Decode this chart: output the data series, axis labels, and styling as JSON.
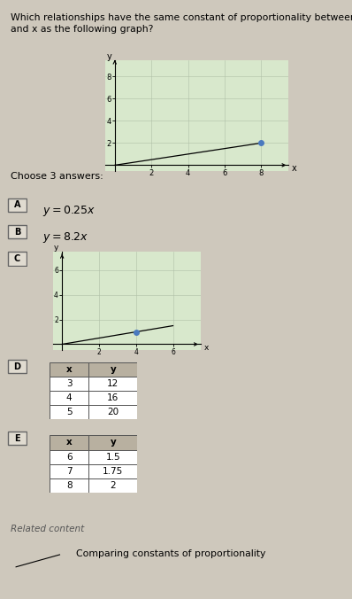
{
  "title_line1": "Which relationships have the same constant of proportionality between y",
  "title_line2": "and x as the following graph?",
  "background_color": "#cec8bc",
  "choose_text": "Choose 3 answers:",
  "separator_color": "#5a5a5a",
  "main_graph": {
    "xlim": [
      -0.5,
      9.5
    ],
    "ylim": [
      -0.5,
      9.5
    ],
    "xticks": [
      2,
      4,
      6,
      8
    ],
    "yticks": [
      2,
      4,
      6,
      8
    ],
    "line_x": [
      0,
      8
    ],
    "line_y": [
      0,
      2
    ],
    "dot_x": 8,
    "dot_y": 2,
    "grid_color": "#b0c0a8",
    "face_color": "#d8e8cc"
  },
  "answer_C_graph": {
    "xlim": [
      -0.5,
      7.5
    ],
    "ylim": [
      -0.5,
      7.5
    ],
    "xticks": [
      2,
      4,
      6
    ],
    "yticks": [
      2,
      4,
      6
    ],
    "line_x": [
      0,
      6
    ],
    "line_y": [
      0,
      1.5
    ],
    "dot_x": 4,
    "dot_y": 1.0,
    "grid_color": "#b0c0a8",
    "face_color": "#d8e8cc"
  },
  "table_D": {
    "headers": [
      "x",
      "y"
    ],
    "rows": [
      [
        "3",
        "12"
      ],
      [
        "4",
        "16"
      ],
      [
        "5",
        "20"
      ]
    ]
  },
  "table_E": {
    "headers": [
      "x",
      "y"
    ],
    "rows": [
      [
        "6",
        "1.5"
      ],
      [
        "7",
        "1.75"
      ],
      [
        "8",
        "2"
      ]
    ]
  },
  "related_content_text": "Related content",
  "related_link_text": "Comparing constants of proportionality",
  "dot_color": "#4a7abf",
  "box_face": "#e0dbd0",
  "box_edge": "#666666",
  "table_header_color": "#b8b0a0",
  "table_row_color": "#ffffff"
}
